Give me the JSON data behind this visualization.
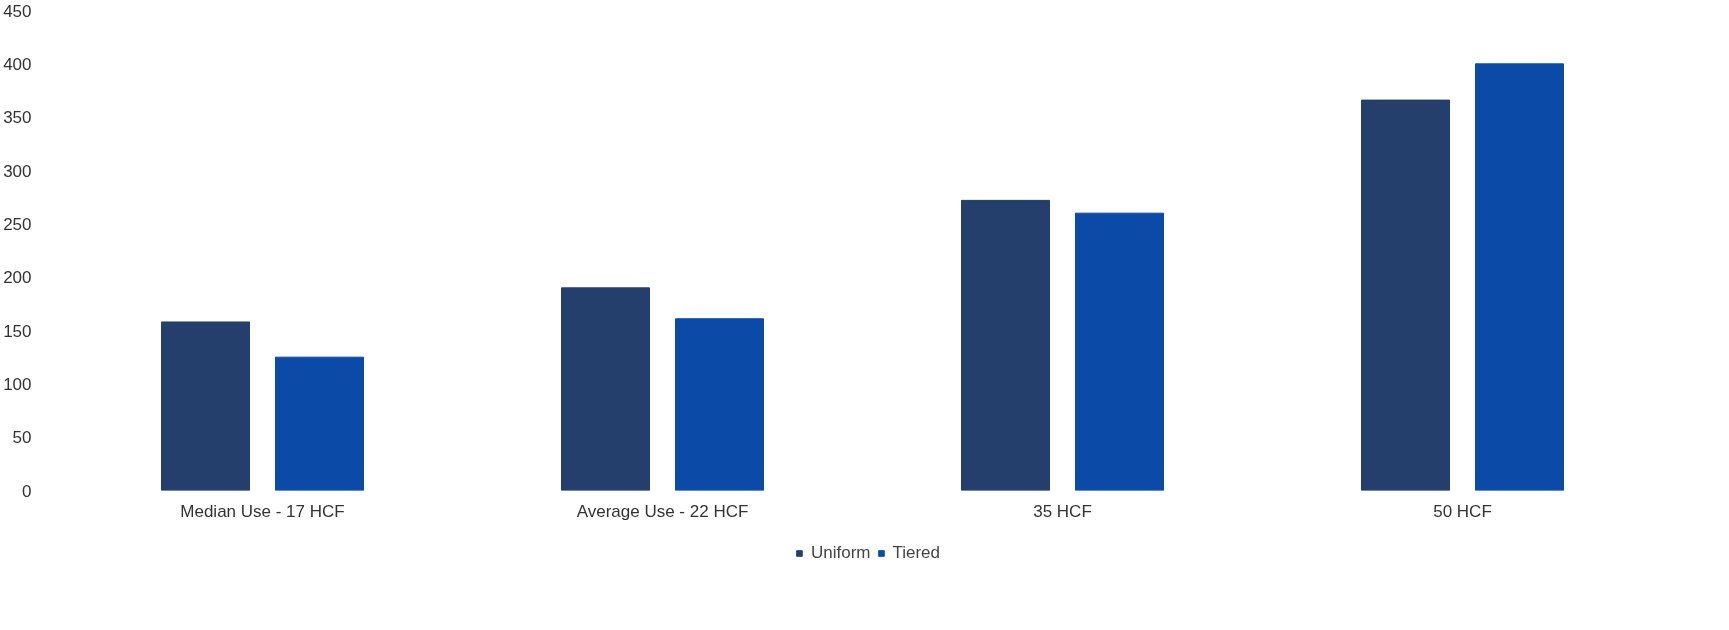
{
  "chart_data": {
    "type": "bar",
    "categories": [
      "Median Use - 17 HCF",
      "Average Use - 22 HCF",
      "35 HCF",
      "50 HCF"
    ],
    "series": [
      {
        "name": "Uniform",
        "color": "#243f6b",
        "values": [
          158,
          190,
          272,
          366
        ]
      },
      {
        "name": "Tiered",
        "color": "#0b4aa6",
        "values": [
          125,
          161,
          260,
          400
        ]
      }
    ],
    "ylim": [
      0,
      450
    ],
    "yticks": [
      0,
      50,
      100,
      150,
      200,
      250,
      300,
      350,
      400,
      450
    ],
    "legend": "bottom",
    "grid": false
  }
}
